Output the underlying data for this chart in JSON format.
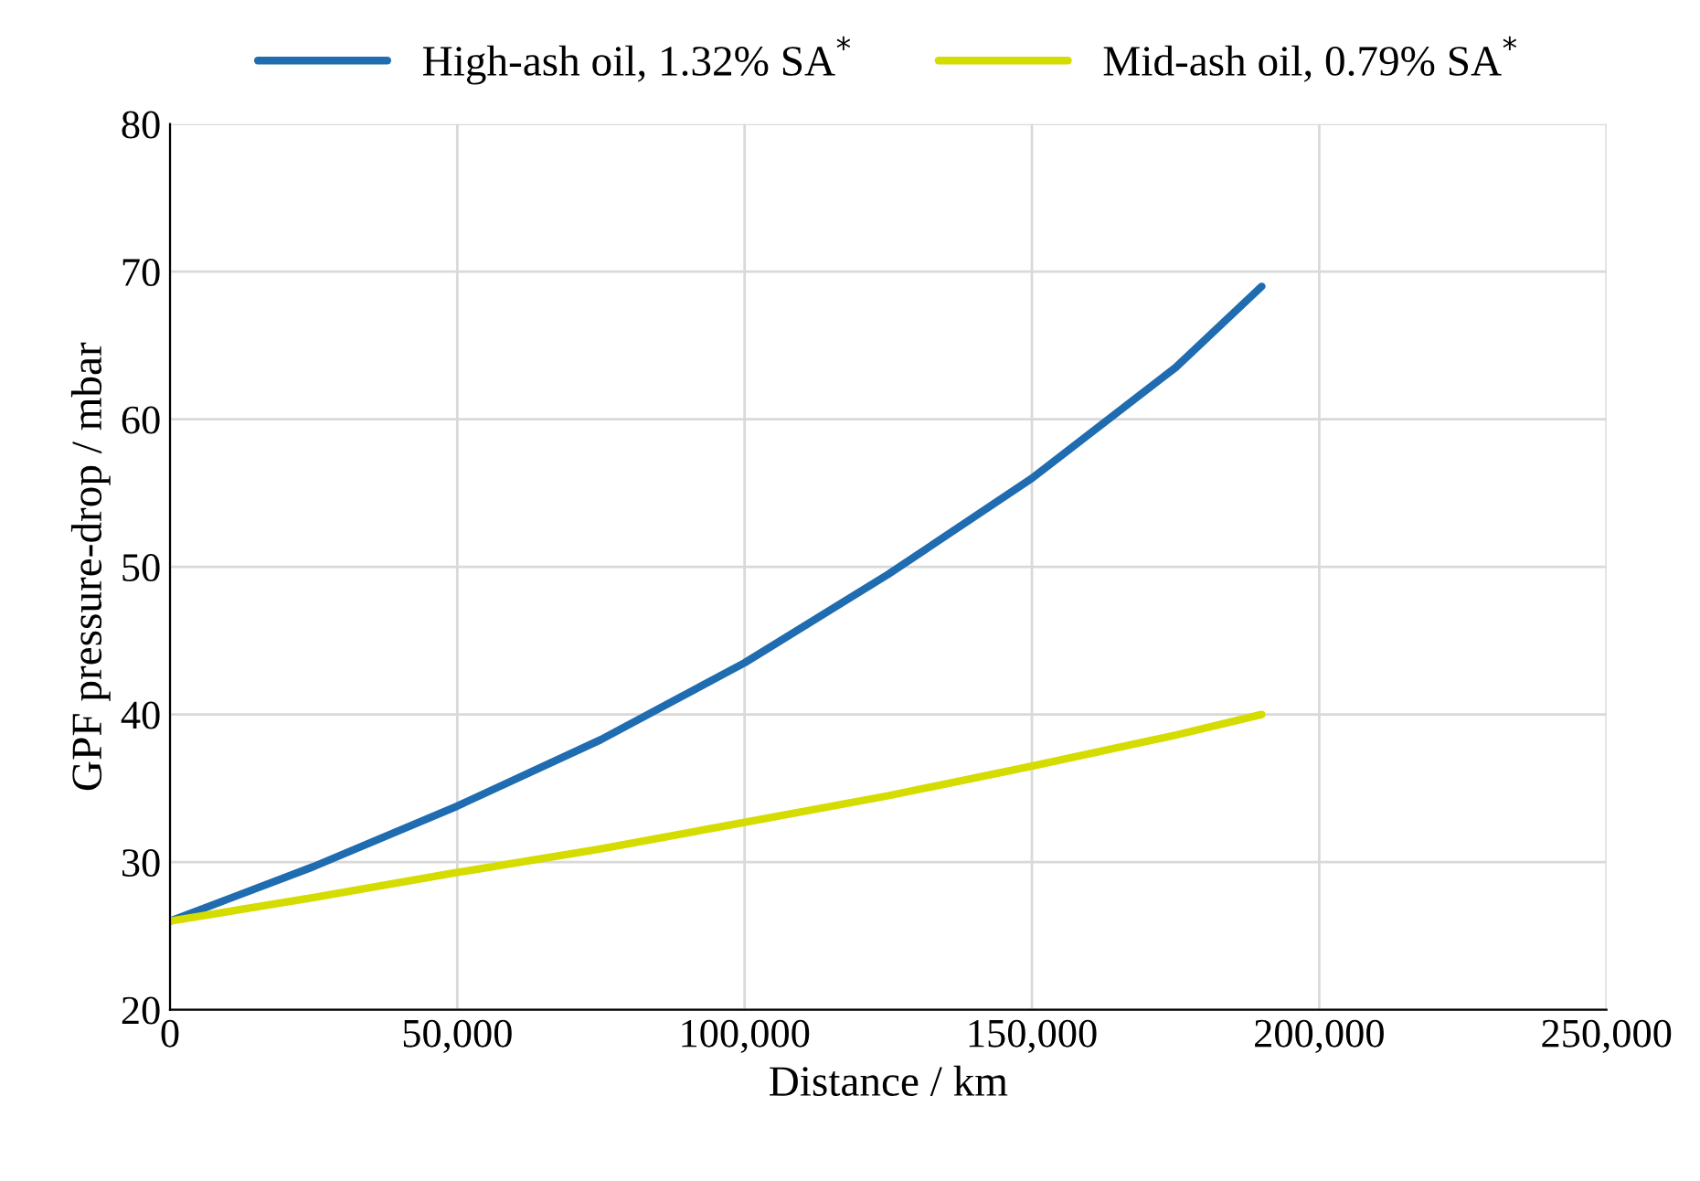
{
  "chart_data": {
    "type": "line",
    "xlabel": "Distance / km",
    "ylabel": "GPF pressure-drop / mbar",
    "series": [
      {
        "name": "High-ash oil, 1.32% SA$^{*}$",
        "color": "#1f6cb0",
        "x": [
          0,
          25000,
          50000,
          75000,
          100000,
          125000,
          150000,
          175000,
          190000
        ],
        "values": [
          26,
          29.7,
          33.8,
          38.3,
          43.5,
          49.5,
          56,
          63.5,
          69
        ]
      },
      {
        "name": "Mid-ash oil, 0.79% SA$^{*}$",
        "color": "#d4dc00",
        "x": [
          0,
          25000,
          50000,
          75000,
          100000,
          125000,
          150000,
          175000,
          190000
        ],
        "values": [
          26,
          27.6,
          29.3,
          30.9,
          32.7,
          34.5,
          36.5,
          38.6,
          40
        ]
      }
    ],
    "xlim": [
      0,
      250000
    ],
    "ylim": [
      20,
      80
    ],
    "xticks": [
      0,
      {
        "value": 50000,
        "label": "50,000"
      },
      {
        "value": 100000,
        "label": "100,000"
      },
      {
        "value": 150000,
        "label": "150,000"
      },
      {
        "value": 200000,
        "label": "200,000"
      },
      {
        "value": 250000,
        "label": "250,000"
      }
    ],
    "yticks": [
      20,
      30,
      40,
      50,
      60,
      70,
      80
    ],
    "grid": true,
    "legend": "top",
    "marker": "none",
    "line_style": "solid"
  }
}
